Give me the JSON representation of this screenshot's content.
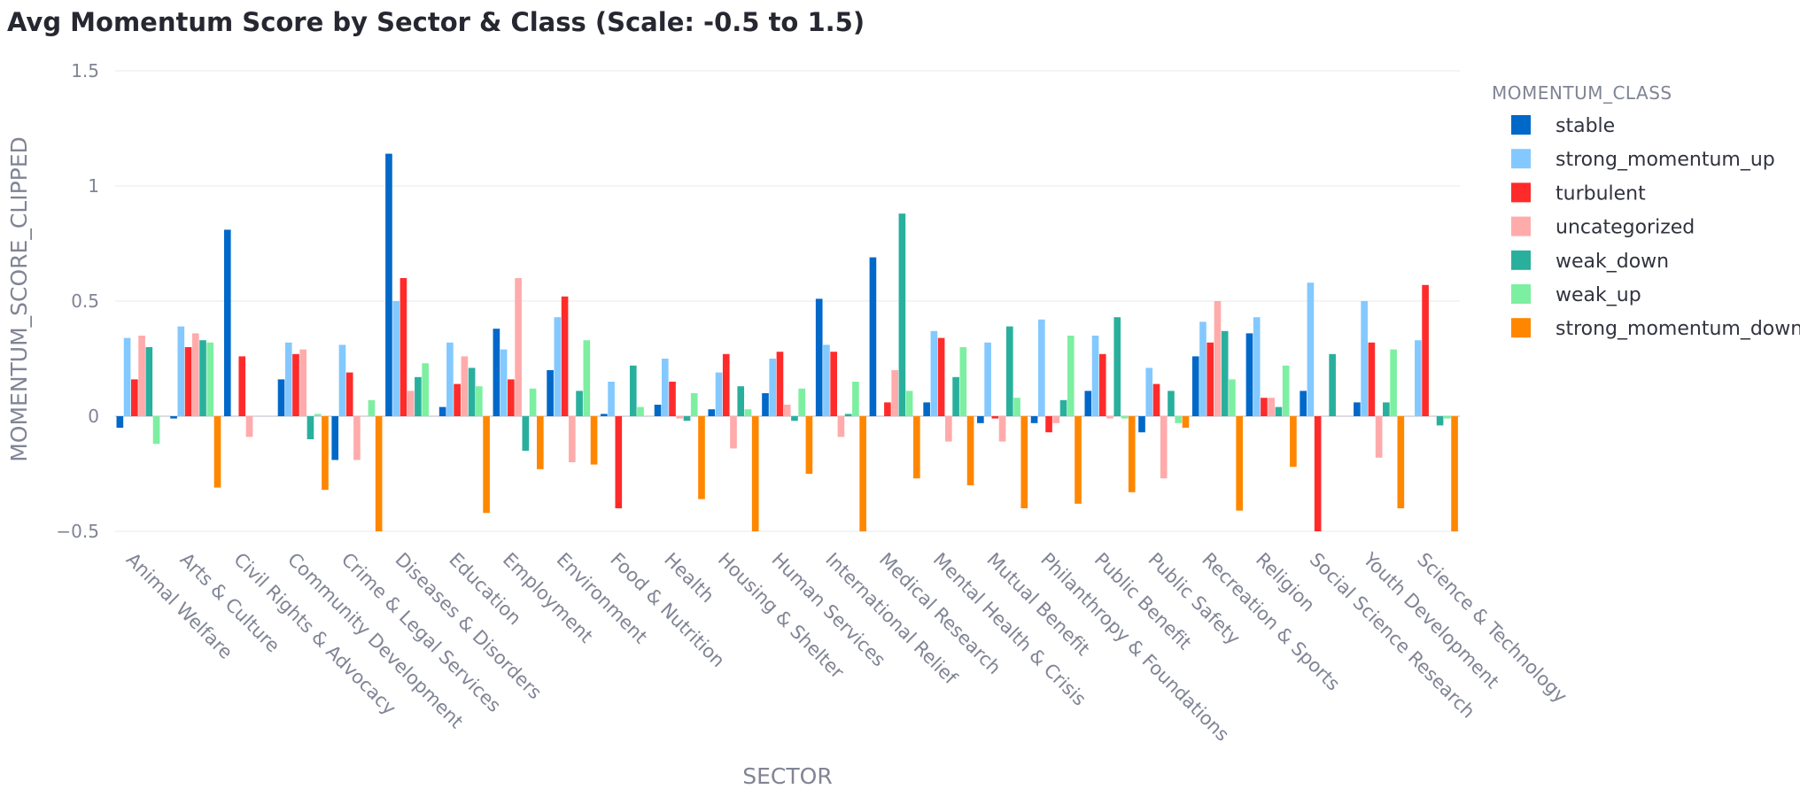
{
  "chart_data": {
    "type": "bar",
    "title": "Avg Momentum Score by Sector & Class (Scale: -0.5 to 1.5)",
    "xlabel": "SECTOR",
    "ylabel": "MOMENTUM_SCORE_CLIPPED",
    "ylim": [
      -0.5,
      1.5
    ],
    "yticks": [
      -0.5,
      0,
      0.5,
      1,
      1.5
    ],
    "ytick_labels": [
      "−0.5",
      "0",
      "0.5",
      "1",
      "1.5"
    ],
    "grid": true,
    "legend_title": "MOMENTUM_CLASS",
    "legend_position": "right",
    "categories": [
      "Animal Welfare",
      "Arts & Culture",
      "Civil Rights & Advocacy",
      "Community Development",
      "Crime & Legal Services",
      "Diseases & Disorders",
      "Education",
      "Employment",
      "Environment",
      "Food & Nutrition",
      "Health",
      "Housing & Shelter",
      "Human Services",
      "International Relief",
      "Medical Research",
      "Mental Health & Crisis",
      "Mutual Benefit",
      "Philanthropy & Foundations",
      "Public Benefit",
      "Public Safety",
      "Recreation & Sports",
      "Religion",
      "Social Science Research",
      "Youth Development",
      "Science & Technology"
    ],
    "series": [
      {
        "name": "stable",
        "color": "#0068c9",
        "values": [
          -0.05,
          -0.01,
          0.81,
          0.16,
          -0.19,
          1.14,
          0.04,
          0.38,
          0.2,
          0.01,
          0.05,
          0.03,
          0.1,
          0.51,
          0.69,
          0.06,
          -0.03,
          -0.03,
          0.11,
          -0.07,
          0.26,
          0.36,
          0.11,
          0.06,
          null
        ]
      },
      {
        "name": "strong_momentum_up",
        "color": "#83c9ff",
        "values": [
          0.34,
          0.39,
          null,
          0.32,
          0.31,
          0.5,
          0.32,
          0.29,
          0.43,
          0.15,
          0.25,
          0.19,
          0.25,
          0.31,
          null,
          0.37,
          0.32,
          0.42,
          0.35,
          0.21,
          0.41,
          0.43,
          0.58,
          0.5,
          0.33
        ]
      },
      {
        "name": "turbulent",
        "color": "#ff2b2b",
        "values": [
          0.16,
          0.3,
          0.26,
          0.27,
          0.19,
          0.6,
          0.14,
          0.16,
          0.52,
          -0.4,
          0.15,
          0.27,
          0.28,
          0.28,
          0.06,
          0.34,
          -0.01,
          -0.07,
          0.27,
          0.14,
          0.32,
          0.08,
          -0.5,
          0.32,
          0.57
        ]
      },
      {
        "name": "uncategorized",
        "color": "#ffabab",
        "values": [
          0.35,
          0.36,
          -0.09,
          0.29,
          -0.19,
          0.11,
          0.26,
          0.6,
          -0.2,
          null,
          -0.01,
          -0.14,
          0.05,
          -0.09,
          0.2,
          -0.11,
          -0.11,
          -0.03,
          -0.01,
          -0.27,
          0.5,
          0.08,
          null,
          -0.18,
          null
        ]
      },
      {
        "name": "weak_down",
        "color": "#29b09d",
        "values": [
          0.3,
          0.33,
          null,
          -0.1,
          null,
          0.17,
          0.21,
          -0.15,
          0.11,
          0.22,
          -0.02,
          0.13,
          -0.02,
          0.01,
          0.88,
          0.17,
          0.39,
          0.07,
          0.43,
          0.11,
          0.37,
          0.04,
          0.27,
          0.06,
          -0.04
        ]
      },
      {
        "name": "weak_up",
        "color": "#7defa1",
        "values": [
          -0.12,
          0.32,
          null,
          0.01,
          0.07,
          0.23,
          0.13,
          0.12,
          0.33,
          0.04,
          0.1,
          0.03,
          0.12,
          0.15,
          0.11,
          0.3,
          0.08,
          0.35,
          -0.01,
          -0.03,
          0.16,
          0.22,
          null,
          0.29,
          -0.01
        ]
      },
      {
        "name": "strong_momentum_down",
        "color": "#ff8700",
        "values": [
          null,
          -0.31,
          null,
          -0.32,
          -0.5,
          null,
          -0.42,
          -0.23,
          -0.21,
          null,
          -0.36,
          -0.5,
          -0.25,
          -0.5,
          -0.27,
          -0.3,
          -0.4,
          -0.38,
          -0.33,
          -0.05,
          -0.41,
          -0.22,
          null,
          -0.4,
          -0.5
        ]
      }
    ]
  }
}
